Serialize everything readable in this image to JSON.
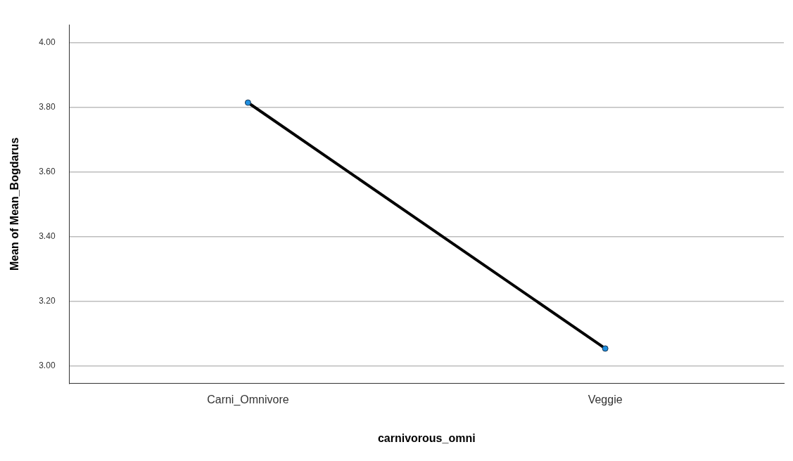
{
  "chart_data": {
    "type": "line",
    "xlabel": "carnivorous_omni",
    "ylabel": "Mean of Mean_Bogdarus",
    "categories": [
      "Carni_Omnivore",
      "Veggie"
    ],
    "series": [
      {
        "color": "#000000",
        "colors": [
          "#1f8fe0",
          "#1f8fe0"
        ],
        "values": [
          3.814,
          3.053
        ]
      }
    ],
    "ylim": [
      2.945,
      4.055
    ],
    "yticks": [
      {
        "value": 3,
        "label": "3.00"
      },
      {
        "value": 3.2,
        "label": "3.20"
      },
      {
        "value": 3.4,
        "label": "3.40"
      },
      {
        "value": 3.6,
        "label": "3.60"
      },
      {
        "value": 3.8,
        "label": "3.80"
      },
      {
        "value": 4,
        "label": "4.00"
      }
    ],
    "grid": "y",
    "marker": "circle",
    "line_style": "solid",
    "legend": false
  }
}
